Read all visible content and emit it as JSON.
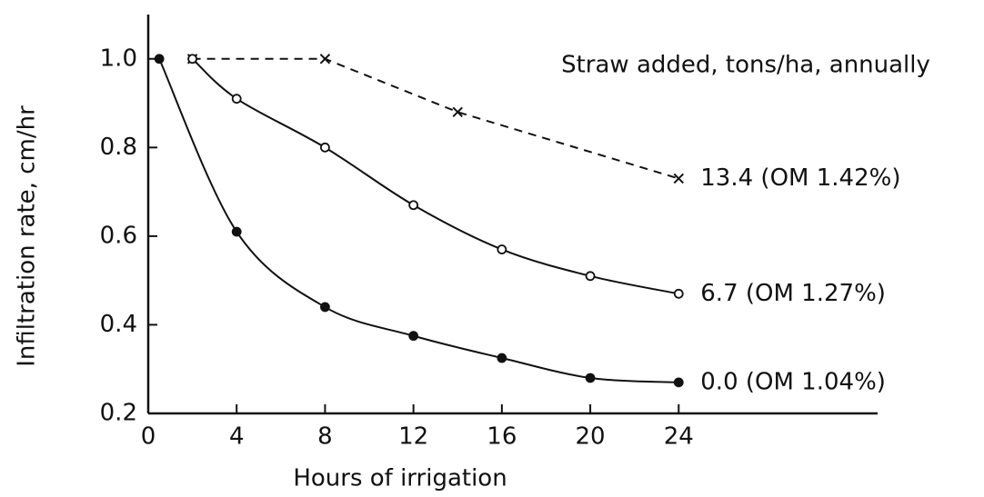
{
  "chart_data": {
    "type": "line",
    "xlabel": "Hours of irrigation",
    "ylabel": "Infiltration rate, cm/hr",
    "annotation": "Straw added, tons/ha, annually",
    "xlim": [
      0,
      33
    ],
    "xticks": [
      0,
      4,
      8,
      12,
      16,
      20,
      24
    ],
    "ylim": [
      0.2,
      1.1
    ],
    "yticks": [
      0.2,
      0.4,
      0.6,
      0.8,
      {
        "value": 1,
        "label": "1.0"
      }
    ],
    "series": [
      {
        "name": "13.4 (OM 1.42%)",
        "color": "#111111",
        "dash": true,
        "marker": "x",
        "x": [
          2,
          8,
          14,
          24
        ],
        "values": [
          1.0,
          1.0,
          0.88,
          0.73
        ]
      },
      {
        "name": "6.7 (OM 1.27%)",
        "color": "#111111",
        "dash": false,
        "marker": "open",
        "x": [
          2,
          4,
          8,
          12,
          16,
          20,
          24
        ],
        "values": [
          1.0,
          0.91,
          0.8,
          0.67,
          0.57,
          0.51,
          0.47
        ]
      },
      {
        "name": "0.0 (OM 1.04%)",
        "color": "#111111",
        "dash": false,
        "marker": "filled",
        "x": [
          0.5,
          4,
          8,
          12,
          16,
          20,
          24
        ],
        "values": [
          1.0,
          0.61,
          0.44,
          0.375,
          0.325,
          0.28,
          0.27
        ]
      }
    ]
  }
}
